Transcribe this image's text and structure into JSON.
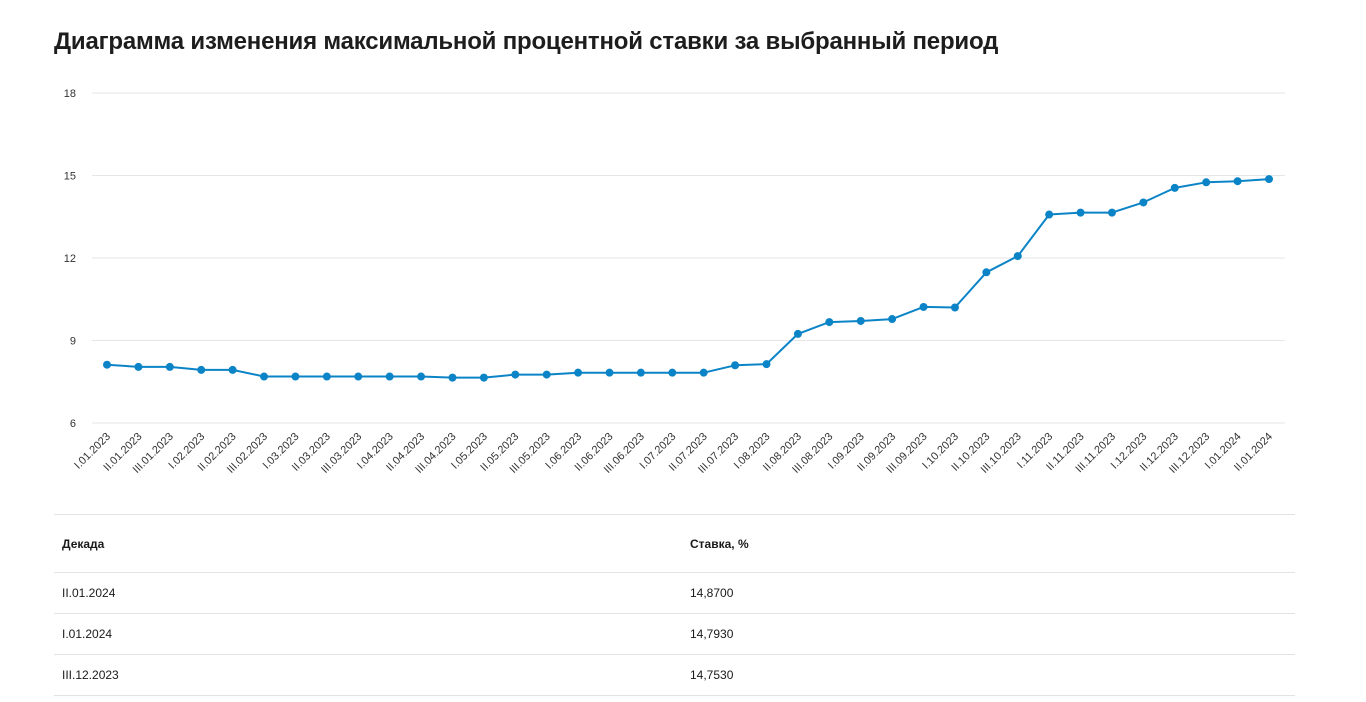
{
  "page": {
    "title": "Диаграмма изменения максимальной процентной ставки за выбранный период"
  },
  "colors": {
    "line": "#0b84c7",
    "grid": "#e6e6e6"
  },
  "chart_data": {
    "type": "line",
    "title": "Диаграмма изменения максимальной процентной ставки за выбранный период",
    "xlabel": "",
    "ylabel": "",
    "ylim": [
      6,
      18
    ],
    "yticks": [
      6,
      9,
      12,
      15,
      18
    ],
    "grid": true,
    "categories": [
      "I.01.2023",
      "II.01.2023",
      "III.01.2023",
      "I.02.2023",
      "II.02.2023",
      "III.02.2023",
      "I.03.2023",
      "II.03.2023",
      "III.03.2023",
      "I.04.2023",
      "II.04.2023",
      "III.04.2023",
      "I.05.2023",
      "II.05.2023",
      "III.05.2023",
      "I.06.2023",
      "II.06.2023",
      "III.06.2023",
      "I.07.2023",
      "II.07.2023",
      "III.07.2023",
      "I.08.2023",
      "II.08.2023",
      "III.08.2023",
      "I.09.2023",
      "II.09.2023",
      "III.09.2023",
      "I.10.2023",
      "II.10.2023",
      "III.10.2023",
      "I.11.2023",
      "II.11.2023",
      "III.11.2023",
      "I.12.2023",
      "II.12.2023",
      "III.12.2023",
      "I.01.2024",
      "II.01.2024"
    ],
    "series": [
      {
        "values": [
          8.12,
          8.04,
          8.04,
          7.93,
          7.93,
          7.69,
          7.69,
          7.69,
          7.69,
          7.69,
          7.69,
          7.65,
          7.65,
          7.76,
          7.76,
          7.83,
          7.83,
          7.83,
          7.83,
          7.83,
          8.1,
          8.14,
          9.24,
          9.67,
          9.71,
          9.78,
          10.22,
          10.2,
          11.48,
          12.07,
          13.58,
          13.65,
          13.65,
          14.02,
          14.55,
          14.753,
          14.793,
          14.87
        ]
      }
    ]
  },
  "table": {
    "headers": [
      "Декада",
      "Ставка, %"
    ],
    "rows": [
      [
        "II.01.2024",
        "14,8700"
      ],
      [
        "I.01.2024",
        "14,7930"
      ],
      [
        "III.12.2023",
        "14,7530"
      ]
    ]
  }
}
